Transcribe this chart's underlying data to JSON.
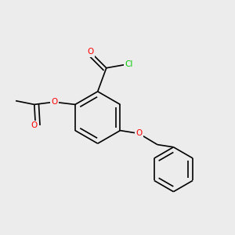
{
  "background_color": "#ececec",
  "atom_colors": {
    "O": "#ff0000",
    "Cl": "#00cc00",
    "C": "#000000"
  },
  "bond_color": "#000000",
  "bond_width": 1.2,
  "dbo": 0.018,
  "font_size_atom": 7.5
}
